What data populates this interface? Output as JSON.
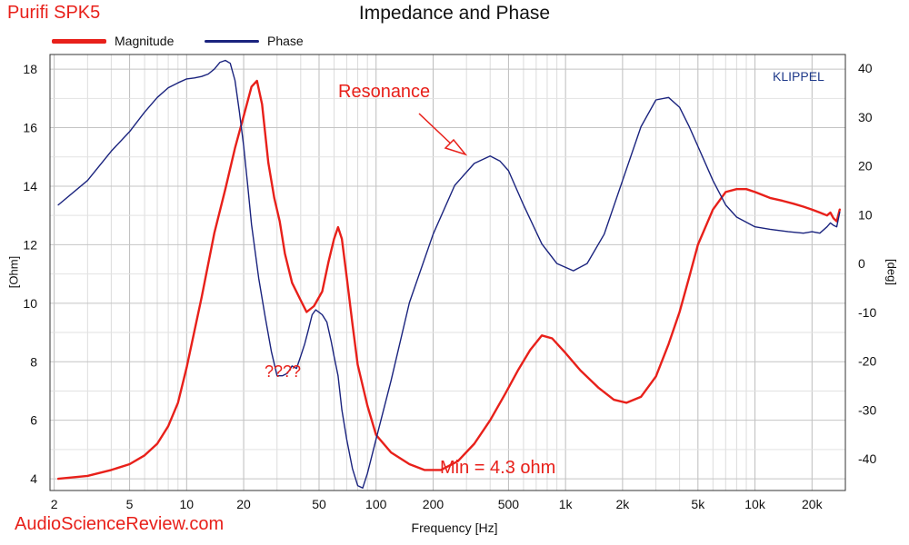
{
  "header": {
    "product": "Purifi SPK5",
    "title": "Impedance and Phase"
  },
  "legend": [
    {
      "name": "Magnitude",
      "color": "#e8201a"
    },
    {
      "name": "Phase",
      "color": "#1a237e"
    }
  ],
  "brand": "KLIPPEL",
  "watermark": "AudioScienceReview.com",
  "axes": {
    "xlabel": "Frequency [Hz]",
    "ylabel_left": "[Ohm]",
    "ylabel_right": "[deg]"
  },
  "annotations": {
    "resonance": "Resonance",
    "question": "????",
    "min": "Min = 4.3 ohm"
  },
  "chart_data": {
    "type": "line",
    "title": "Impedance and Phase",
    "xlabel": "Frequency [Hz]",
    "ylabel": "[Ohm]",
    "y2label": "[deg]",
    "xscale": "log",
    "xlim": [
      1.9,
      30000
    ],
    "ylim": [
      3.6,
      18.5
    ],
    "y2lim": [
      -46.5,
      42.8
    ],
    "grid": true,
    "legend_position": "top-left",
    "x_ticks": [
      {
        "value": 2,
        "label": "2"
      },
      {
        "value": 5,
        "label": "5"
      },
      {
        "value": 10,
        "label": "10"
      },
      {
        "value": 20,
        "label": "20"
      },
      {
        "value": 50,
        "label": "50"
      },
      {
        "value": 100,
        "label": "100"
      },
      {
        "value": 200,
        "label": "200"
      },
      {
        "value": 500,
        "label": "500"
      },
      {
        "value": 1000,
        "label": "1k"
      },
      {
        "value": 2000,
        "label": "2k"
      },
      {
        "value": 5000,
        "label": "5k"
      },
      {
        "value": 10000,
        "label": "10k"
      },
      {
        "value": 20000,
        "label": "20k"
      }
    ],
    "y_ticks": [
      4,
      6,
      8,
      10,
      12,
      14,
      16,
      18
    ],
    "y2_ticks": [
      40,
      30,
      20,
      10,
      0,
      -10,
      -20,
      -30,
      -40
    ],
    "series": [
      {
        "name": "Magnitude",
        "color": "#e8201a",
        "axis": "left",
        "x": [
          2.1,
          3,
          4,
          5,
          6,
          7,
          8,
          9,
          10,
          12,
          14,
          16,
          18,
          20,
          22,
          23.5,
          25,
          27,
          29,
          31,
          33,
          36,
          40,
          43,
          47,
          52,
          56,
          60,
          63,
          66,
          70,
          75,
          80,
          90,
          100,
          120,
          150,
          180,
          220,
          270,
          330,
          400,
          480,
          560,
          650,
          750,
          850,
          1000,
          1200,
          1500,
          1800,
          2100,
          2500,
          3000,
          3500,
          4000,
          4500,
          5000,
          6000,
          7000,
          8000,
          9000,
          10000,
          12000,
          14000,
          16000,
          18000,
          20000,
          22000,
          24000,
          25000,
          26000,
          27000,
          28000
        ],
        "y": [
          4.0,
          4.1,
          4.3,
          4.5,
          4.8,
          5.2,
          5.8,
          6.6,
          7.8,
          10.2,
          12.4,
          13.9,
          15.3,
          16.4,
          17.4,
          17.6,
          16.8,
          14.8,
          13.6,
          12.8,
          11.7,
          10.7,
          10.1,
          9.7,
          9.9,
          10.4,
          11.4,
          12.2,
          12.6,
          12.2,
          10.9,
          9.3,
          7.9,
          6.5,
          5.5,
          4.9,
          4.5,
          4.3,
          4.3,
          4.6,
          5.2,
          6.0,
          6.9,
          7.7,
          8.4,
          8.9,
          8.8,
          8.3,
          7.7,
          7.1,
          6.7,
          6.6,
          6.8,
          7.5,
          8.6,
          9.7,
          10.9,
          12.0,
          13.2,
          13.8,
          13.9,
          13.9,
          13.8,
          13.6,
          13.5,
          13.4,
          13.3,
          13.2,
          13.1,
          13.0,
          13.1,
          12.9,
          12.8,
          13.2
        ]
      },
      {
        "name": "Phase",
        "color": "#1a237e",
        "axis": "right",
        "x": [
          2.1,
          3,
          4,
          5,
          6,
          7,
          8,
          9,
          10,
          11,
          12,
          13,
          14,
          15,
          16,
          17,
          18,
          19,
          20,
          21,
          22,
          24,
          26,
          28,
          30,
          32,
          34,
          36,
          38,
          40,
          42,
          44,
          46,
          48,
          50,
          52,
          55,
          58,
          60,
          63,
          66,
          70,
          75,
          80,
          85,
          90,
          100,
          120,
          150,
          200,
          260,
          330,
          400,
          450,
          500,
          600,
          750,
          900,
          1100,
          1300,
          1600,
          2000,
          2500,
          3000,
          3500,
          4000,
          4500,
          5000,
          6000,
          7000,
          8000,
          10000,
          12000,
          15000,
          18000,
          20000,
          22000,
          24000,
          25000,
          26000,
          27000,
          28000
        ],
        "y": [
          12,
          17,
          23,
          27,
          31,
          34,
          36,
          37,
          37.8,
          38,
          38.3,
          38.8,
          39.8,
          41.2,
          41.6,
          41.0,
          37.5,
          31,
          24,
          16,
          8,
          -3,
          -11,
          -18,
          -23,
          -23,
          -22.5,
          -21,
          -21.5,
          -19,
          -16.5,
          -13.5,
          -10.5,
          -9.5,
          -10,
          -10.5,
          -12,
          -16,
          -19,
          -23,
          -30,
          -36,
          -42,
          -45.5,
          -46,
          -43,
          -36,
          -24,
          -8,
          6,
          16,
          20.5,
          22,
          21,
          19,
          12,
          4,
          0,
          -1.5,
          0,
          6,
          17,
          28,
          33.5,
          34,
          32,
          28,
          24,
          17,
          12,
          9.5,
          7.5,
          7,
          6.5,
          6.2,
          6.5,
          6.2,
          7.5,
          8.3,
          7.8,
          7.5,
          10.5
        ]
      }
    ]
  }
}
